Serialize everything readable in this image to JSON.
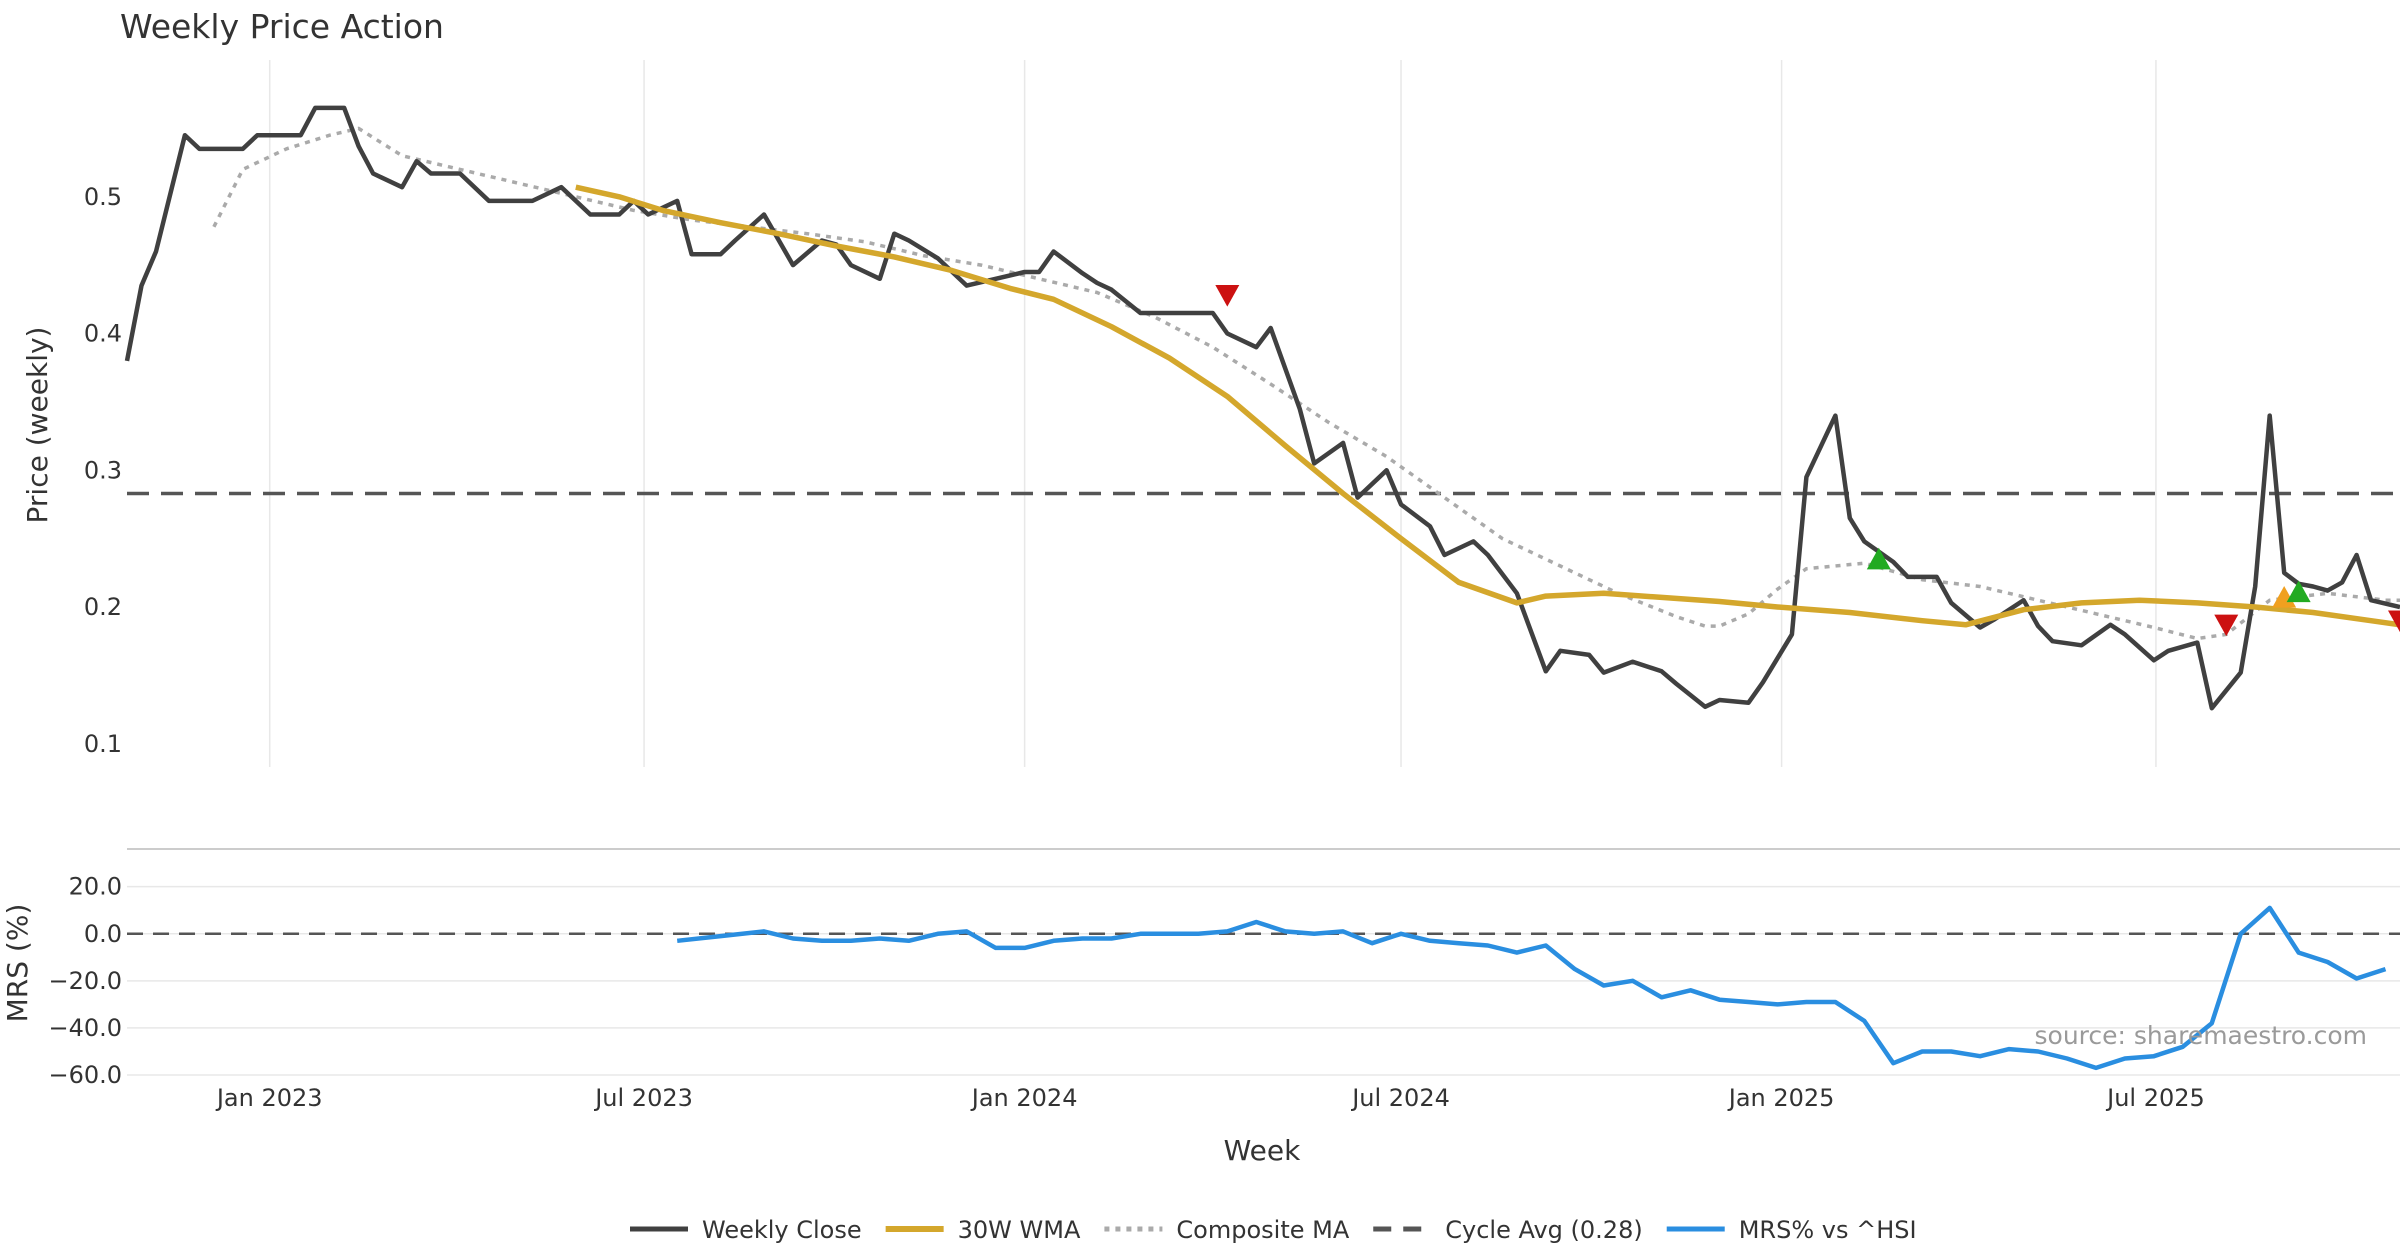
{
  "chart_data": {
    "type": "line",
    "title": "Weekly Price Action",
    "xlabel": "Week",
    "source": "source: sharemaestro.com",
    "x_ticks": [
      "Jan 2023",
      "Jul 2023",
      "Jan 2024",
      "Jul 2024",
      "Jan 2025",
      "Jul 2025"
    ],
    "x_range": [
      "2022-10-24",
      "2025-10-27"
    ],
    "colors": {
      "weekly_close": "#404040",
      "wma": "#d4a72c",
      "composite": "#aaaaaa",
      "cycle": "#555555",
      "mrs": "#2a8ee0",
      "sell": "#cc1111",
      "buy": "#22aa22",
      "orange": "#f0a020"
    },
    "price_panel": {
      "ylabel": "Price (weekly)",
      "y_ticks": [
        0.1,
        0.2,
        0.3,
        0.4,
        0.5
      ],
      "ylim": [
        0.083,
        0.6
      ],
      "weekly_close": [
        [
          "2022-10-24",
          0.38
        ],
        [
          "2022-10-31",
          0.435
        ],
        [
          "2022-11-07",
          0.46
        ],
        [
          "2022-11-21",
          0.545
        ],
        [
          "2022-11-28",
          0.535
        ],
        [
          "2022-12-19",
          0.535
        ],
        [
          "2022-12-26",
          0.545
        ],
        [
          "2023-01-16",
          0.545
        ],
        [
          "2023-01-23",
          0.565
        ],
        [
          "2023-02-06",
          0.565
        ],
        [
          "2023-02-13",
          0.537
        ],
        [
          "2023-02-20",
          0.517
        ],
        [
          "2023-03-06",
          0.507
        ],
        [
          "2023-03-13",
          0.526
        ],
        [
          "2023-03-20",
          0.517
        ],
        [
          "2023-04-03",
          0.517
        ],
        [
          "2023-04-17",
          0.497
        ],
        [
          "2023-05-08",
          0.497
        ],
        [
          "2023-05-22",
          0.507
        ],
        [
          "2023-06-05",
          0.487
        ],
        [
          "2023-06-19",
          0.487
        ],
        [
          "2023-06-26",
          0.497
        ],
        [
          "2023-07-03",
          0.487
        ],
        [
          "2023-07-17",
          0.497
        ],
        [
          "2023-07-24",
          0.458
        ],
        [
          "2023-08-07",
          0.458
        ],
        [
          "2023-08-14",
          0.468
        ],
        [
          "2023-08-28",
          0.487
        ],
        [
          "2023-09-11",
          0.45
        ],
        [
          "2023-09-25",
          0.468
        ],
        [
          "2023-10-02",
          0.465
        ],
        [
          "2023-10-09",
          0.45
        ],
        [
          "2023-10-23",
          0.44
        ],
        [
          "2023-10-30",
          0.473
        ],
        [
          "2023-11-06",
          0.468
        ],
        [
          "2023-11-20",
          0.455
        ],
        [
          "2023-12-04",
          0.435
        ],
        [
          "2023-12-18",
          0.44
        ],
        [
          "2024-01-01",
          0.445
        ],
        [
          "2024-01-08",
          0.445
        ],
        [
          "2024-01-15",
          0.46
        ],
        [
          "2024-01-29",
          0.444
        ],
        [
          "2024-02-05",
          0.437
        ],
        [
          "2024-02-12",
          0.432
        ],
        [
          "2024-02-26",
          0.415
        ],
        [
          "2024-03-11",
          0.415
        ],
        [
          "2024-03-18",
          0.415
        ],
        [
          "2024-04-01",
          0.415
        ],
        [
          "2024-04-08",
          0.4
        ],
        [
          "2024-04-22",
          0.39
        ],
        [
          "2024-04-29",
          0.404
        ],
        [
          "2024-05-13",
          0.345
        ],
        [
          "2024-05-20",
          0.305
        ],
        [
          "2024-06-03",
          0.32
        ],
        [
          "2024-06-10",
          0.28
        ],
        [
          "2024-06-24",
          0.3
        ],
        [
          "2024-07-01",
          0.275
        ],
        [
          "2024-07-15",
          0.259
        ],
        [
          "2024-07-22",
          0.238
        ],
        [
          "2024-08-05",
          0.248
        ],
        [
          "2024-08-12",
          0.238
        ],
        [
          "2024-08-26",
          0.21
        ],
        [
          "2024-09-09",
          0.153
        ],
        [
          "2024-09-16",
          0.168
        ],
        [
          "2024-09-30",
          0.165
        ],
        [
          "2024-10-07",
          0.152
        ],
        [
          "2024-10-21",
          0.16
        ],
        [
          "2024-11-04",
          0.153
        ],
        [
          "2024-11-11",
          0.144
        ],
        [
          "2024-11-25",
          0.127
        ],
        [
          "2024-12-02",
          0.132
        ],
        [
          "2024-12-16",
          0.13
        ],
        [
          "2024-12-23",
          0.145
        ],
        [
          "2025-01-06",
          0.18
        ],
        [
          "2025-01-13",
          0.295
        ],
        [
          "2025-01-27",
          0.34
        ],
        [
          "2025-02-03",
          0.265
        ],
        [
          "2025-02-10",
          0.248
        ],
        [
          "2025-02-24",
          0.233
        ],
        [
          "2025-03-03",
          0.222
        ],
        [
          "2025-03-17",
          0.222
        ],
        [
          "2025-03-24",
          0.203
        ],
        [
          "2025-04-07",
          0.185
        ],
        [
          "2025-04-14",
          0.191
        ],
        [
          "2025-04-28",
          0.205
        ],
        [
          "2025-05-05",
          0.186
        ],
        [
          "2025-05-12",
          0.175
        ],
        [
          "2025-05-26",
          0.172
        ],
        [
          "2025-06-09",
          0.187
        ],
        [
          "2025-06-16",
          0.18
        ],
        [
          "2025-06-30",
          0.161
        ],
        [
          "2025-07-07",
          0.168
        ],
        [
          "2025-07-21",
          0.174
        ],
        [
          "2025-07-28",
          0.126
        ],
        [
          "2025-08-11",
          0.152
        ],
        [
          "2025-08-18",
          0.215
        ],
        [
          "2025-08-25",
          0.34
        ],
        [
          "2025-09-01",
          0.225
        ],
        [
          "2025-09-08",
          0.217
        ],
        [
          "2025-09-15",
          0.215
        ],
        [
          "2025-09-22",
          0.212
        ],
        [
          "2025-09-29",
          0.218
        ],
        [
          "2025-10-06",
          0.238
        ],
        [
          "2025-10-13",
          0.205
        ],
        [
          "2025-10-27",
          0.2
        ]
      ],
      "wma_30w": [
        [
          "2023-05-29",
          0.507
        ],
        [
          "2023-06-19",
          0.5
        ],
        [
          "2023-07-10",
          0.49
        ],
        [
          "2023-08-07",
          0.481
        ],
        [
          "2023-09-04",
          0.473
        ],
        [
          "2023-10-02",
          0.464
        ],
        [
          "2023-10-30",
          0.456
        ],
        [
          "2023-11-27",
          0.446
        ],
        [
          "2023-12-25",
          0.433
        ],
        [
          "2024-01-15",
          0.425
        ],
        [
          "2024-02-12",
          0.405
        ],
        [
          "2024-03-11",
          0.382
        ],
        [
          "2024-04-08",
          0.354
        ],
        [
          "2024-05-06",
          0.318
        ],
        [
          "2024-06-03",
          0.283
        ],
        [
          "2024-07-01",
          0.25
        ],
        [
          "2024-07-29",
          0.218
        ],
        [
          "2024-08-26",
          0.203
        ],
        [
          "2024-09-09",
          0.208
        ],
        [
          "2024-10-07",
          0.21
        ],
        [
          "2024-11-04",
          0.207
        ],
        [
          "2024-12-02",
          0.204
        ],
        [
          "2024-12-30",
          0.2
        ],
        [
          "2025-02-03",
          0.196
        ],
        [
          "2025-03-10",
          0.19
        ],
        [
          "2025-03-31",
          0.187
        ],
        [
          "2025-04-28",
          0.198
        ],
        [
          "2025-05-26",
          0.203
        ],
        [
          "2025-06-23",
          0.205
        ],
        [
          "2025-07-21",
          0.203
        ],
        [
          "2025-08-18",
          0.2
        ],
        [
          "2025-09-15",
          0.196
        ],
        [
          "2025-10-13",
          0.19
        ],
        [
          "2025-10-27",
          0.187
        ]
      ],
      "composite_ma": [
        [
          "2022-12-05",
          0.478
        ],
        [
          "2022-12-19",
          0.52
        ],
        [
          "2023-01-09",
          0.535
        ],
        [
          "2023-01-30",
          0.545
        ],
        [
          "2023-02-13",
          0.55
        ],
        [
          "2023-03-06",
          0.53
        ],
        [
          "2023-04-03",
          0.52
        ],
        [
          "2023-05-01",
          0.51
        ],
        [
          "2023-05-29",
          0.5
        ],
        [
          "2023-06-26",
          0.49
        ],
        [
          "2023-07-24",
          0.483
        ],
        [
          "2023-08-21",
          0.478
        ],
        [
          "2023-09-18",
          0.473
        ],
        [
          "2023-10-16",
          0.467
        ],
        [
          "2023-11-13",
          0.457
        ],
        [
          "2023-12-11",
          0.45
        ],
        [
          "2024-01-08",
          0.44
        ],
        [
          "2024-02-05",
          0.43
        ],
        [
          "2024-03-04",
          0.412
        ],
        [
          "2024-04-01",
          0.39
        ],
        [
          "2024-04-29",
          0.363
        ],
        [
          "2024-05-27",
          0.335
        ],
        [
          "2024-06-24",
          0.31
        ],
        [
          "2024-07-22",
          0.28
        ],
        [
          "2024-08-19",
          0.25
        ],
        [
          "2024-09-16",
          0.23
        ],
        [
          "2024-10-14",
          0.21
        ],
        [
          "2024-11-11",
          0.193
        ],
        [
          "2024-11-25",
          0.186
        ],
        [
          "2024-12-02",
          0.186
        ],
        [
          "2024-12-16",
          0.195
        ],
        [
          "2024-12-30",
          0.213
        ],
        [
          "2025-01-13",
          0.228
        ],
        [
          "2025-02-10",
          0.232
        ],
        [
          "2025-03-10",
          0.22
        ],
        [
          "2025-04-07",
          0.215
        ],
        [
          "2025-05-05",
          0.205
        ],
        [
          "2025-06-02",
          0.195
        ],
        [
          "2025-06-30",
          0.185
        ],
        [
          "2025-07-21",
          0.177
        ],
        [
          "2025-08-04",
          0.18
        ],
        [
          "2025-08-25",
          0.205
        ],
        [
          "2025-09-22",
          0.21
        ],
        [
          "2025-10-20",
          0.205
        ],
        [
          "2025-10-27",
          0.205
        ]
      ],
      "cycle_avg": {
        "label": "Cycle Avg (0.28)",
        "value": 0.283
      },
      "markers": [
        {
          "date": "2024-04-08",
          "y": 0.428,
          "kind": "sell"
        },
        {
          "date": "2025-02-17",
          "y": 0.235,
          "kind": "buy"
        },
        {
          "date": "2025-08-04",
          "y": 0.187,
          "kind": "sell"
        },
        {
          "date": "2025-09-01",
          "y": 0.207,
          "kind": "orange"
        },
        {
          "date": "2025-09-08",
          "y": 0.211,
          "kind": "buy"
        },
        {
          "date": "2025-10-27",
          "y": 0.19,
          "kind": "sell"
        }
      ]
    },
    "mrs_panel": {
      "ylabel": "MRS (%)",
      "y_ticks": [
        20.0,
        0.0,
        -20.0,
        -40.0,
        -60.0
      ],
      "ylim": [
        -60,
        36
      ],
      "mrs_vs_hsi": [
        [
          "2023-07-17",
          -3
        ],
        [
          "2023-08-07",
          -1
        ],
        [
          "2023-08-28",
          1
        ],
        [
          "2023-09-11",
          -2
        ],
        [
          "2023-09-25",
          -3
        ],
        [
          "2023-10-09",
          -3
        ],
        [
          "2023-10-23",
          -2
        ],
        [
          "2023-11-06",
          -3
        ],
        [
          "2023-11-20",
          0
        ],
        [
          "2023-12-04",
          1
        ],
        [
          "2023-12-18",
          -6
        ],
        [
          "2024-01-01",
          -6
        ],
        [
          "2024-01-15",
          -3
        ],
        [
          "2024-01-29",
          -2
        ],
        [
          "2024-02-12",
          -2
        ],
        [
          "2024-02-26",
          0
        ],
        [
          "2024-03-11",
          0
        ],
        [
          "2024-03-25",
          0
        ],
        [
          "2024-04-08",
          1
        ],
        [
          "2024-04-22",
          5
        ],
        [
          "2024-05-06",
          1
        ],
        [
          "2024-05-20",
          0
        ],
        [
          "2024-06-03",
          1
        ],
        [
          "2024-06-17",
          -4
        ],
        [
          "2024-07-01",
          0
        ],
        [
          "2024-07-15",
          -3
        ],
        [
          "2024-07-29",
          -4
        ],
        [
          "2024-08-12",
          -5
        ],
        [
          "2024-08-26",
          -8
        ],
        [
          "2024-09-09",
          -5
        ],
        [
          "2024-09-23",
          -15
        ],
        [
          "2024-10-07",
          -22
        ],
        [
          "2024-10-21",
          -20
        ],
        [
          "2024-11-04",
          -27
        ],
        [
          "2024-11-18",
          -24
        ],
        [
          "2024-12-02",
          -28
        ],
        [
          "2024-12-16",
          -29
        ],
        [
          "2024-12-30",
          -30
        ],
        [
          "2025-01-13",
          -29
        ],
        [
          "2025-01-27",
          -29
        ],
        [
          "2025-02-10",
          -37
        ],
        [
          "2025-02-24",
          -55
        ],
        [
          "2025-03-10",
          -50
        ],
        [
          "2025-03-24",
          -50
        ],
        [
          "2025-04-07",
          -52
        ],
        [
          "2025-04-21",
          -49
        ],
        [
          "2025-05-05",
          -50
        ],
        [
          "2025-05-19",
          -53
        ],
        [
          "2025-06-02",
          -57
        ],
        [
          "2025-06-16",
          -53
        ],
        [
          "2025-06-30",
          -52
        ],
        [
          "2025-07-14",
          -48
        ],
        [
          "2025-07-28",
          -38
        ],
        [
          "2025-08-11",
          0
        ],
        [
          "2025-08-25",
          11
        ],
        [
          "2025-09-08",
          -8
        ],
        [
          "2025-09-22",
          -12
        ],
        [
          "2025-10-06",
          -19
        ],
        [
          "2025-10-20",
          -15
        ]
      ]
    },
    "legend": [
      {
        "key": "weekly_close",
        "label": "Weekly Close",
        "style": "solid"
      },
      {
        "key": "wma",
        "label": "30W WMA",
        "style": "solid"
      },
      {
        "key": "composite",
        "label": "Composite MA",
        "style": "dotted"
      },
      {
        "key": "cycle",
        "label": "Cycle Avg (0.28)",
        "style": "dashed"
      },
      {
        "key": "mrs",
        "label": "MRS% vs ^HSI",
        "style": "solid"
      }
    ]
  }
}
